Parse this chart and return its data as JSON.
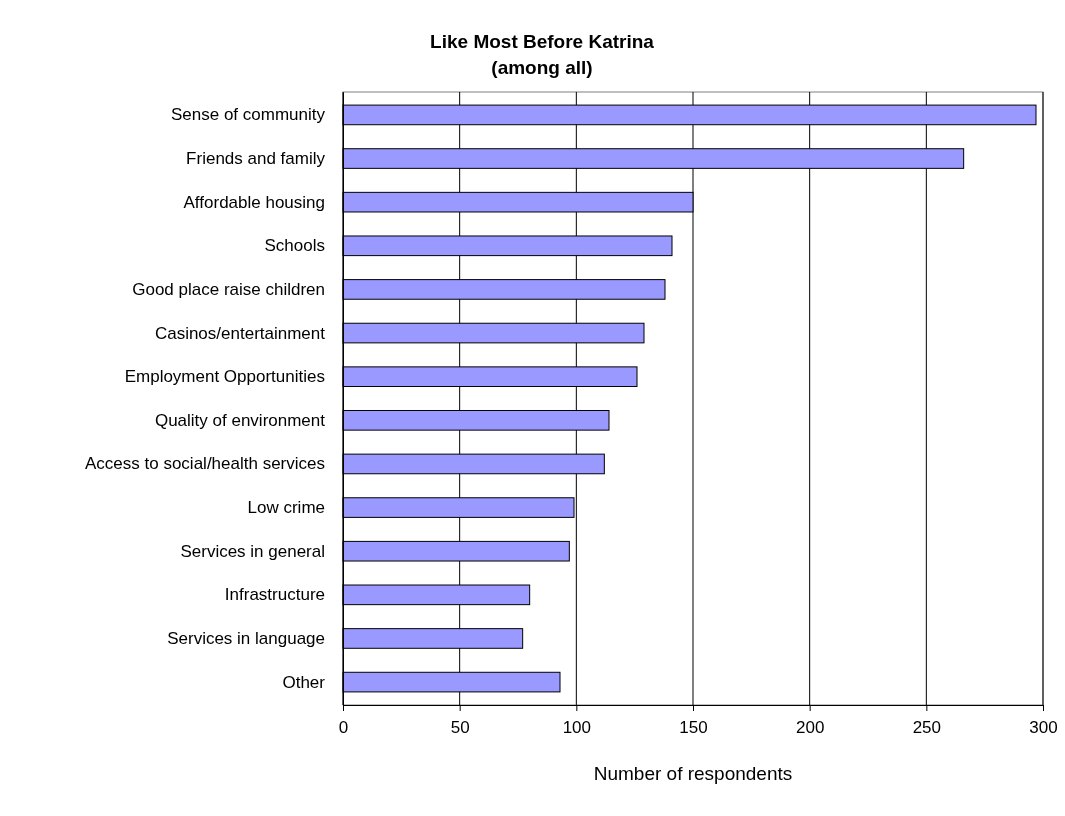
{
  "chart_data": {
    "type": "bar",
    "orientation": "horizontal",
    "title": "Like Most Before Katrina",
    "subtitle": "(among all)",
    "xlabel": "Number of respondents",
    "categories": [
      "Sense of community",
      "Friends and family",
      "Affordable housing",
      "Schools",
      "Good place raise children",
      "Casinos/entertainment",
      "Employment Opportunities",
      "Quality of environment",
      "Access to social/health services",
      "Low crime",
      "Services in general",
      "Infrastructure",
      "Services in language",
      "Other"
    ],
    "values": [
      297,
      266,
      150,
      141,
      138,
      129,
      126,
      114,
      112,
      99,
      97,
      80,
      77,
      93
    ],
    "color": "#9999ff",
    "xlim": [
      0,
      300
    ],
    "xticks": [
      0,
      50,
      100,
      150,
      200,
      250,
      300
    ],
    "grid": "x"
  }
}
